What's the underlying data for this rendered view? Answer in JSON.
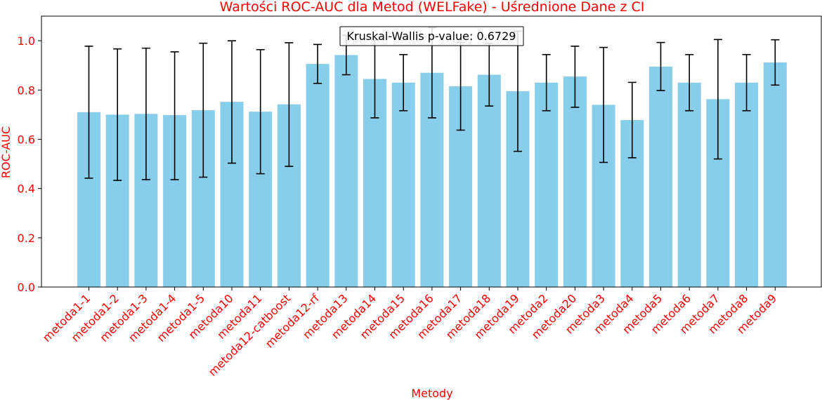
{
  "chart_data": {
    "type": "bar",
    "title": "Wartości ROC-AUC dla Metod (WELFake) - Uśrednione Dane z CI",
    "xlabel": "Metody",
    "ylabel": "ROC-AUC",
    "ylim": [
      0.0,
      1.1
    ],
    "yticks": [
      "0.0",
      "0.2",
      "0.4",
      "0.6",
      "0.8",
      "1.0"
    ],
    "grid": false,
    "annotation": "Kruskal-Wallis p-value: 0.6729",
    "categories": [
      "metoda1-1",
      "metoda1-2",
      "metoda1-3",
      "metoda1-4",
      "metoda1-5",
      "metoda10",
      "metoda11",
      "metoda12-catboost",
      "metoda12-rf",
      "metoda13",
      "metoda14",
      "metoda15",
      "metoda16",
      "metoda17",
      "metoda18",
      "metoda19",
      "metoda2",
      "metoda20",
      "metoda3",
      "metoda4",
      "metoda5",
      "metoda6",
      "metoda7",
      "metoda8",
      "metoda9"
    ],
    "values": [
      0.71,
      0.7,
      0.703,
      0.698,
      0.718,
      0.752,
      0.712,
      0.742,
      0.906,
      0.942,
      0.845,
      0.83,
      0.87,
      0.815,
      0.862,
      0.795,
      0.83,
      0.855,
      0.74,
      0.678,
      0.895,
      0.83,
      0.763,
      0.83,
      0.912
    ],
    "ci_lower": [
      0.442,
      0.433,
      0.436,
      0.436,
      0.446,
      0.503,
      0.46,
      0.49,
      0.827,
      0.862,
      0.687,
      0.716,
      0.687,
      0.637,
      0.735,
      0.551,
      0.716,
      0.73,
      0.506,
      0.525,
      0.798,
      0.716,
      0.52,
      0.716,
      0.82
    ],
    "ci_upper": [
      0.978,
      0.967,
      0.97,
      0.955,
      0.99,
      1.0,
      0.964,
      0.992,
      0.985,
      1.022,
      1.003,
      0.944,
      1.053,
      0.993,
      0.989,
      1.039,
      0.944,
      0.978,
      0.973,
      0.831,
      0.993,
      0.944,
      1.005,
      0.944,
      1.004
    ],
    "colors": {
      "bar": "#87ceeb",
      "errorbar": "#000000",
      "text": "#ff0000"
    }
  }
}
